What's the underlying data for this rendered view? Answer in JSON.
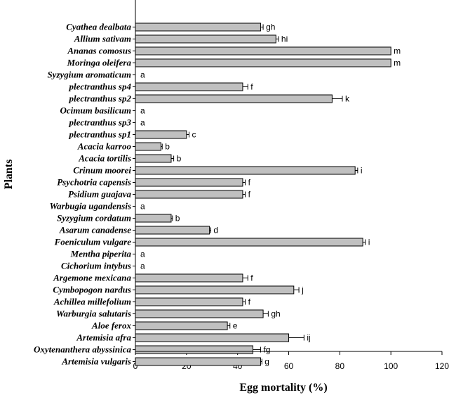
{
  "chart_data": {
    "type": "bar",
    "orientation": "horizontal",
    "xlabel": "Egg mortality (%)",
    "ylabel": "Plants",
    "xlim": [
      0,
      120
    ],
    "xticks": [
      0,
      20,
      40,
      60,
      80,
      100,
      120
    ],
    "categories": [
      "Cyathea dealbata",
      "Allium sativam",
      "Ananas comosus",
      "Moringa oleifera",
      "Syzygium aromaticum",
      "plectranthus sp4",
      "plectranthus sp2",
      "Ocimum basilicum",
      "plectranthus sp3",
      "plectranthus sp1",
      "Acacia karroo",
      "Acacia tortilis",
      "Crinum moorei",
      "Psychotria capensis",
      "Psidium guajava",
      "Warbugia ugandensis",
      "Syzygium cordatum",
      "Asarum canadense",
      "Foeniculum vulgare",
      "Mentha piperita",
      "Cichorium intybus",
      "Argemone mexicana",
      "Cymbopogon nardus",
      "Achillea millefolium",
      "Warburgia salutaris",
      "Aloe ferox",
      "Artemisia afra",
      "Oxytenanthera abyssinica",
      "Artemisia vulgaris"
    ],
    "values": [
      49,
      55,
      100,
      100,
      0,
      42,
      77,
      0,
      0,
      20,
      10,
      14,
      86,
      42,
      42,
      0,
      14,
      29,
      89,
      0,
      0,
      42,
      62,
      42,
      50,
      36,
      60,
      46,
      49
    ],
    "errors": [
      1,
      1,
      0,
      0,
      0,
      2,
      4,
      0,
      0,
      1,
      0.5,
      1,
      1,
      1,
      1,
      0,
      0.5,
      0.5,
      1,
      0,
      0,
      2,
      2,
      1,
      2,
      1,
      6,
      3,
      0.5
    ],
    "significance": [
      "gh",
      "hi",
      "m",
      "m",
      "a",
      "f",
      "k",
      "a",
      "a",
      "c",
      "b",
      "b",
      "i",
      "f",
      "f",
      "a",
      "b",
      "d",
      "i",
      "a",
      "a",
      "f",
      "j",
      "f",
      "gh",
      "e",
      "ij",
      "fg",
      "g"
    ],
    "colors": {
      "bar_fill": "#c0c0c0",
      "bar_stroke": "#000000",
      "axis": "#000000"
    }
  }
}
